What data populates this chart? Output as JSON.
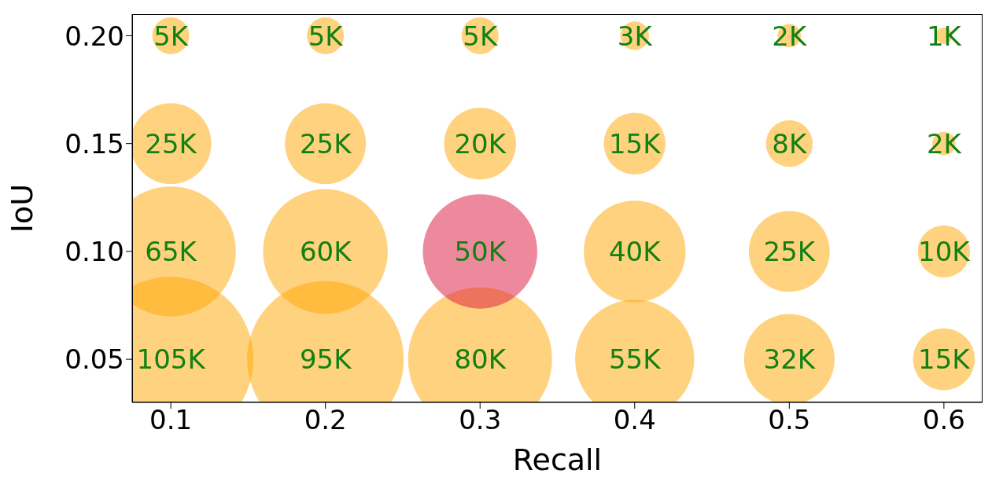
{
  "chart_data": {
    "type": "bubble",
    "xlabel": "Recall",
    "ylabel": "IoU",
    "xlim": [
      0.075,
      0.625
    ],
    "xticks": [
      0.1,
      0.2,
      0.3,
      0.4,
      0.5,
      0.6
    ],
    "ylim": [
      0.03,
      0.21
    ],
    "yticks": [
      {
        "value": 0.05,
        "label": "0.05"
      },
      {
        "value": 0.1,
        "label": "0.10"
      },
      {
        "value": 0.15,
        "label": "0.15"
      },
      {
        "value": 0.2,
        "label": "0.20"
      }
    ],
    "grid": false,
    "legend": false,
    "series": [
      {
        "x": [
          0.1,
          0.2,
          0.3,
          0.4,
          0.5,
          0.6,
          0.1,
          0.2,
          0.3,
          0.4,
          0.5,
          0.6,
          0.1,
          0.2,
          0.3,
          0.4,
          0.5,
          0.6,
          0.1,
          0.2,
          0.3,
          0.4,
          0.5,
          0.6
        ],
        "values": [
          0.05,
          0.05,
          0.05,
          0.05,
          0.05,
          0.05,
          0.1,
          0.1,
          0.1,
          0.1,
          0.1,
          0.1,
          0.15,
          0.15,
          0.15,
          0.15,
          0.15,
          0.15,
          0.2,
          0.2,
          0.2,
          0.2,
          0.2,
          0.2
        ],
        "sizes": [
          1,
          0.9,
          0.76,
          0.52,
          0.3,
          0.14,
          0.62,
          0.57,
          0.48,
          0.38,
          0.24,
          0.1,
          0.24,
          0.24,
          0.19,
          0.14,
          0.08,
          0.02,
          0.05,
          0.05,
          0.05,
          0.03,
          0.02,
          0.01
        ],
        "colors": [
          "#ffa500",
          "#ffa500",
          "#ffa500",
          "#ffa500",
          "#ffa500",
          "#ffa500",
          "#ffa500",
          "#ffa500",
          "#dc143c",
          "#ffa500",
          "#ffa500",
          "#ffa500",
          "#ffa500",
          "#ffa500",
          "#ffa500",
          "#ffa500",
          "#ffa500",
          "#ffa500",
          "#ffa500",
          "#ffa500",
          "#ffa500",
          "#ffa500",
          "#ffa500",
          "#ffa500"
        ]
      }
    ],
    "annotations": [
      {
        "text": "105K",
        "x": 0.1,
        "y": 0.05
      },
      {
        "text": "95K",
        "x": 0.2,
        "y": 0.05
      },
      {
        "text": "80K",
        "x": 0.3,
        "y": 0.05
      },
      {
        "text": "55K",
        "x": 0.4,
        "y": 0.05
      },
      {
        "text": "32K",
        "x": 0.5,
        "y": 0.05
      },
      {
        "text": "15K",
        "x": 0.6,
        "y": 0.05
      },
      {
        "text": "65K",
        "x": 0.1,
        "y": 0.1
      },
      {
        "text": "60K",
        "x": 0.2,
        "y": 0.1
      },
      {
        "text": "50K",
        "x": 0.3,
        "y": 0.1
      },
      {
        "text": "40K",
        "x": 0.4,
        "y": 0.1
      },
      {
        "text": "25K",
        "x": 0.5,
        "y": 0.1
      },
      {
        "text": "10K",
        "x": 0.6,
        "y": 0.1
      },
      {
        "text": "25K",
        "x": 0.1,
        "y": 0.15
      },
      {
        "text": "25K",
        "x": 0.2,
        "y": 0.15
      },
      {
        "text": "20K",
        "x": 0.3,
        "y": 0.15
      },
      {
        "text": "15K",
        "x": 0.4,
        "y": 0.15
      },
      {
        "text": "8K",
        "x": 0.5,
        "y": 0.15
      },
      {
        "text": "2K",
        "x": 0.6,
        "y": 0.15
      },
      {
        "text": "5K",
        "x": 0.1,
        "y": 0.2
      },
      {
        "text": "5K",
        "x": 0.2,
        "y": 0.2
      },
      {
        "text": "5K",
        "x": 0.3,
        "y": 0.2
      },
      {
        "text": "3K",
        "x": 0.4,
        "y": 0.2
      },
      {
        "text": "2K",
        "x": 0.5,
        "y": 0.2
      },
      {
        "text": "1K",
        "x": 0.6,
        "y": 0.2
      }
    ]
  }
}
